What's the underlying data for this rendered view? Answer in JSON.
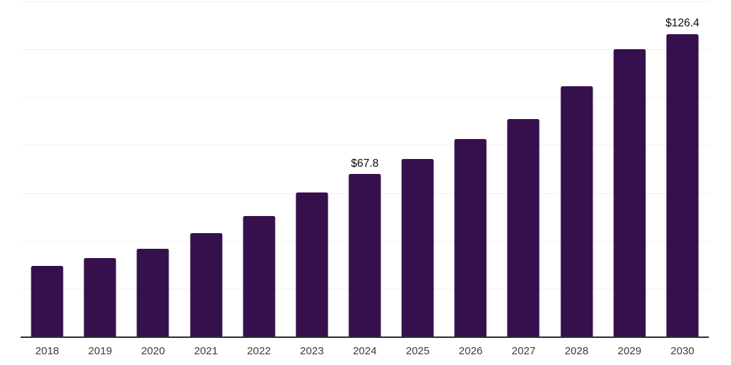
{
  "chart_data": {
    "type": "bar",
    "title": "",
    "categories": [
      "2018",
      "2019",
      "2020",
      "2021",
      "2022",
      "2023",
      "2024",
      "2025",
      "2026",
      "2027",
      "2028",
      "2029",
      "2030"
    ],
    "values": [
      29.5,
      32.8,
      36.6,
      43.2,
      50.3,
      60.2,
      67.8,
      74.2,
      82.5,
      90.9,
      104.6,
      120.0,
      126.4
    ],
    "data_labels": {
      "2024": "$67.8",
      "2030": "$126.4"
    },
    "xlabel": "",
    "ylabel": "",
    "ylim": [
      0,
      140
    ],
    "grid_interval": 20,
    "grid": "horizontal",
    "legend": "none",
    "y_tick_labels": "hidden",
    "colors": {
      "bar": "#36104D",
      "axis_line": "#2e2e2e",
      "gridline": "#f1f1f3",
      "data_label_text": "#0b0b0b",
      "tick_label_text": "#3c3c3c",
      "background": "#ffffff"
    }
  }
}
